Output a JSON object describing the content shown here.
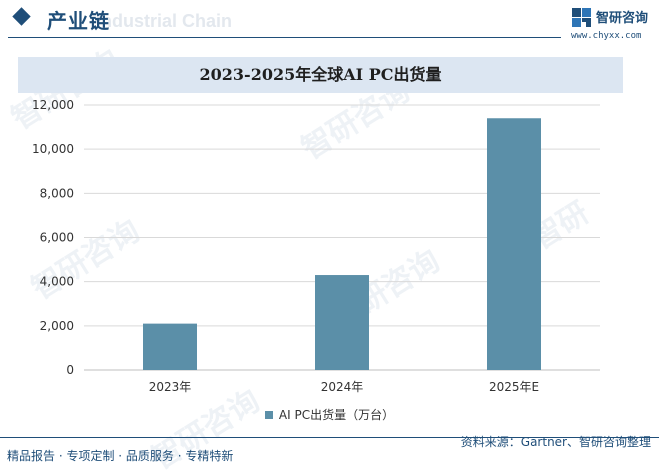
{
  "header": {
    "title": "产业链",
    "ghost_text": "Industrial Chain",
    "brand_name": "智研咨询",
    "brand_url": "www.chyxx.com"
  },
  "chart_data": {
    "type": "bar",
    "title": "2023-2025年全球AI PC出货量",
    "categories": [
      "2023年",
      "2024年",
      "2025年E"
    ],
    "series": [
      {
        "name": "AI PC出货量（万台）",
        "values": [
          2100,
          4300,
          11400
        ]
      }
    ],
    "ylim": [
      0,
      12000
    ],
    "yticks": [
      "0",
      "2,000",
      "4,000",
      "6,000",
      "8,000",
      "10,000",
      "12,000"
    ],
    "grid": true,
    "legend_position": "bottom",
    "bar_color": "#5b8fa8"
  },
  "footer": {
    "left": "精品报告 · 专项定制 · 品质服务 · 专精特新",
    "source": "资料来源：Gartner、智研咨询整理"
  },
  "colors": {
    "brand": "#1f4e79",
    "band": "#dce6f2",
    "grid": "#d9d9d9"
  }
}
